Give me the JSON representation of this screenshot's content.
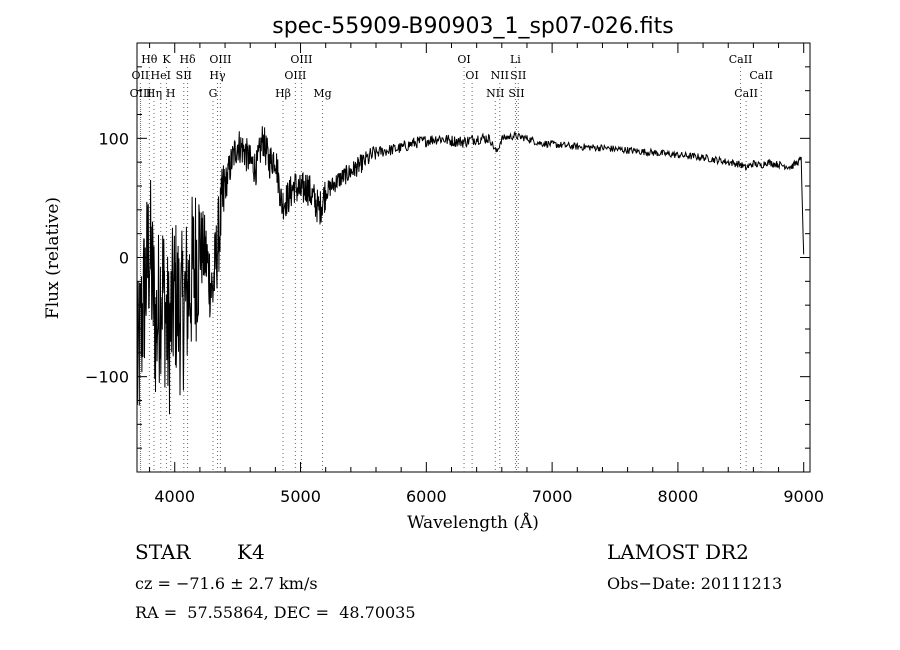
{
  "chart_data": {
    "type": "line",
    "title": "spec-55909-B90903_1_sp07-026.fits",
    "xlabel": "Wavelength (Å)",
    "ylabel": "Flux (relative)",
    "xlim": [
      3700,
      9050
    ],
    "ylim": [
      -180,
      180
    ],
    "x_ticks": [
      4000,
      5000,
      6000,
      7000,
      8000,
      9000
    ],
    "x_tick_labels": [
      "4000",
      "5000",
      "6000",
      "7000",
      "8000",
      "9000"
    ],
    "y_ticks": [
      100,
      0,
      -100
    ],
    "y_tick_labels": [
      "100",
      "0",
      "−100"
    ],
    "grid": false,
    "legend": "none",
    "line_color": "#000000",
    "marker_color": "#e53030",
    "series": [
      {
        "x": [
          3700,
          3750,
          3800,
          3850,
          3900,
          3950,
          4000,
          4050,
          4100,
          4150,
          4200,
          4250,
          4300,
          4350,
          4400,
          4450,
          4500,
          4550,
          4600,
          4650,
          4700,
          4750,
          4800,
          4850,
          4900,
          4950,
          5000,
          5050,
          5100,
          5150,
          5200,
          5250,
          5300,
          5400,
          5500,
          5600,
          5700,
          5800,
          5900,
          6000,
          6100,
          6200,
          6300,
          6400,
          6500,
          6560,
          6600,
          6700,
          6800,
          6900,
          7000,
          7200,
          7400,
          7600,
          7800,
          8000,
          8200,
          8400,
          8500,
          8540,
          8600,
          8660,
          8700,
          8800,
          8900,
          8950,
          8980,
          9000
        ],
        "y": [
          -100,
          -40,
          10,
          -60,
          -20,
          -70,
          -30,
          -50,
          -30,
          -10,
          10,
          0,
          -30,
          20,
          60,
          80,
          95,
          90,
          80,
          75,
          100,
          80,
          85,
          45,
          50,
          60,
          55,
          60,
          50,
          40,
          55,
          60,
          65,
          72,
          80,
          88,
          90,
          92,
          96,
          98,
          100,
          98,
          97,
          100,
          100,
          88,
          100,
          102,
          100,
          96,
          95,
          93,
          92,
          90,
          88,
          86,
          84,
          80,
          78,
          75,
          79,
          77,
          80,
          78,
          76,
          80,
          82,
          0
        ]
      }
    ],
    "line_markers": [
      {
        "label": "Hθ",
        "x": 3798,
        "row": 0
      },
      {
        "label": "K",
        "x": 3934,
        "row": 0
      },
      {
        "label": "Hδ",
        "x": 4102,
        "row": 0
      },
      {
        "label": "OIII",
        "x": 4363,
        "row": 0
      },
      {
        "label": "OIII",
        "x": 5007,
        "row": 0
      },
      {
        "label": "OI",
        "x": 6300,
        "row": 0
      },
      {
        "label": "Li",
        "x": 6708,
        "row": 0
      },
      {
        "label": "CaII",
        "x": 8498,
        "row": 0
      },
      {
        "label": "OII",
        "x": 3727,
        "row": 1
      },
      {
        "label": "HeI",
        "x": 3889,
        "row": 1
      },
      {
        "label": "SII",
        "x": 4072,
        "row": 1
      },
      {
        "label": "Hγ",
        "x": 4340,
        "row": 1
      },
      {
        "label": "OIII",
        "x": 4959,
        "row": 1
      },
      {
        "label": "OI",
        "x": 6364,
        "row": 1
      },
      {
        "label": "NII",
        "x": 6584,
        "row": 1
      },
      {
        "label": "SII",
        "x": 6731,
        "row": 1
      },
      {
        "label": "CaII",
        "x": 8662,
        "row": 1
      },
      {
        "label": "OIII",
        "x": 3729,
        "row": 2
      },
      {
        "label": "Hη",
        "x": 3835,
        "row": 2
      },
      {
        "label": "H",
        "x": 3968,
        "row": 2
      },
      {
        "label": "G",
        "x": 4304,
        "row": 2
      },
      {
        "label": "Hβ",
        "x": 4861,
        "row": 2
      },
      {
        "label": "Mg",
        "x": 5175,
        "row": 2
      },
      {
        "label": "NII",
        "x": 6548,
        "row": 2
      },
      {
        "label": "SII",
        "x": 6717,
        "row": 2
      },
      {
        "label": "CaII",
        "x": 8542,
        "row": 2
      }
    ]
  },
  "info": {
    "class_label": "STAR",
    "subclass_label": "K4",
    "survey": "LAMOST DR2",
    "cz": "cz = −71.6 ± 2.7 km/s",
    "obs_date": "Obs−Date: 20111213",
    "ra_dec": "RA =  57.55864, DEC =  48.70035"
  }
}
